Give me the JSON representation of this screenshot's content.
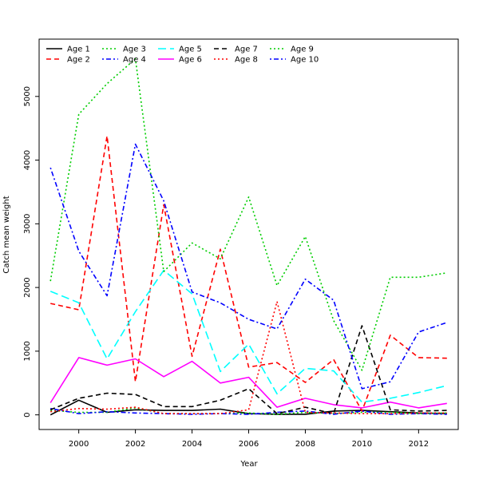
{
  "chart_data": {
    "type": "line",
    "xlabel": "Year",
    "ylabel": "Catch mean weight",
    "xlim": [
      1998.6,
      2013.4
    ],
    "ylim": [
      -230,
      5900
    ],
    "x_ticks": [
      2000,
      2002,
      2004,
      2006,
      2008,
      2010,
      2012
    ],
    "y_ticks": [
      0,
      1000,
      2000,
      3000,
      4000,
      5000
    ],
    "legend_position": "top-left",
    "x": [
      1999,
      2000,
      2001,
      2002,
      2003,
      2004,
      2005,
      2006,
      2007,
      2008,
      2009,
      2010,
      2011,
      2012,
      2013
    ],
    "series": [
      {
        "name": "Age 1",
        "color": "#000000",
        "dash": "solid",
        "values": [
          0,
          230,
          40,
          80,
          70,
          70,
          90,
          20,
          10,
          10,
          60,
          70,
          50,
          30,
          20
        ]
      },
      {
        "name": "Age 2",
        "color": "#ff0000",
        "dash": "dashed",
        "values": [
          1750,
          1650,
          4380,
          520,
          3300,
          920,
          2600,
          750,
          820,
          510,
          870,
          60,
          1250,
          900,
          890
        ]
      },
      {
        "name": "Age 3",
        "color": "#00cd00",
        "dash": "dotted",
        "values": [
          70,
          40,
          40,
          110,
          20,
          20,
          20,
          30,
          10,
          40,
          20,
          40,
          40,
          20,
          30
        ]
      },
      {
        "name": "Age 4",
        "color": "#0000ff",
        "dash": "dotdash",
        "values": [
          100,
          20,
          50,
          30,
          20,
          10,
          20,
          10,
          40,
          60,
          10,
          60,
          10,
          20,
          10
        ]
      },
      {
        "name": "Age 5",
        "color": "#00ffff",
        "dash": "longdash",
        "values": [
          1940,
          1760,
          880,
          1620,
          2270,
          1900,
          680,
          1110,
          330,
          730,
          690,
          200,
          260,
          350,
          460
        ]
      },
      {
        "name": "Age 6",
        "color": "#ff00ff",
        "dash": "solid",
        "values": [
          190,
          900,
          780,
          880,
          600,
          840,
          500,
          590,
          120,
          260,
          160,
          110,
          200,
          110,
          180
        ]
      },
      {
        "name": "Age 7",
        "color": "#000000",
        "dash": "dashed",
        "values": [
          80,
          260,
          340,
          320,
          130,
          130,
          230,
          410,
          20,
          120,
          20,
          1400,
          80,
          60,
          70
        ]
      },
      {
        "name": "Age 8",
        "color": "#ff0000",
        "dash": "dotted",
        "values": [
          50,
          100,
          90,
          120,
          20,
          20,
          20,
          80,
          1780,
          40,
          30,
          20,
          20,
          30,
          30
        ]
      },
      {
        "name": "Age 9",
        "color": "#00cd00",
        "dash": "dotted",
        "values": [
          2100,
          4720,
          5200,
          5590,
          2250,
          2700,
          2450,
          3420,
          2030,
          2800,
          1480,
          700,
          2160,
          2160,
          2230
        ]
      },
      {
        "name": "Age 10",
        "color": "#0000ff",
        "dash": "dotdash",
        "values": [
          3880,
          2570,
          1870,
          4250,
          3360,
          1930,
          1760,
          1500,
          1350,
          2130,
          1800,
          410,
          520,
          1300,
          1450
        ]
      }
    ]
  }
}
